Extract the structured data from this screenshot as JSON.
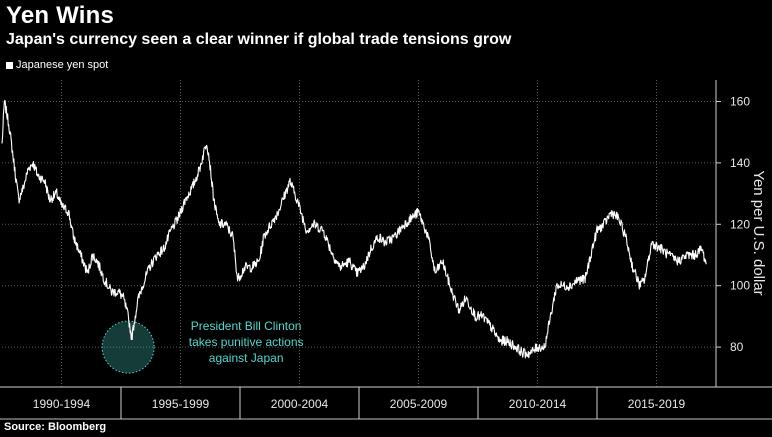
{
  "title": "Yen Wins",
  "subtitle": "Japan's currency seen a clear winner if global trade tensions grow",
  "legend": {
    "label": "Japanese yen spot"
  },
  "source": "Source: Bloomberg",
  "colors": {
    "background": "#000000",
    "line": "#ffffff",
    "grid": "#5a5a5a",
    "annotation": "#4fd8d0"
  },
  "chart_data": {
    "type": "line",
    "title": "Yen Wins",
    "subtitle": "Japan's currency seen a clear winner if global trade tensions grow",
    "series": [
      {
        "name": "Japanese yen spot",
        "x": [
          1990.0,
          1990.1,
          1990.3,
          1990.5,
          1990.7,
          1990.9,
          1991.1,
          1991.3,
          1991.5,
          1991.8,
          1992.0,
          1992.3,
          1992.5,
          1992.8,
          1993.0,
          1993.3,
          1993.6,
          1993.8,
          1994.0,
          1994.3,
          1994.6,
          1994.9,
          1995.1,
          1995.3,
          1995.45,
          1995.7,
          1995.9,
          1996.2,
          1996.5,
          1996.8,
          1997.1,
          1997.4,
          1997.7,
          1998.0,
          1998.3,
          1998.6,
          1998.7,
          1998.9,
          1999.1,
          1999.4,
          1999.7,
          1999.9,
          2000.2,
          2000.5,
          2000.8,
          2001.0,
          2001.3,
          2001.6,
          2001.9,
          2002.1,
          2002.4,
          2002.8,
          2003.1,
          2003.5,
          2003.9,
          2004.2,
          2004.6,
          2004.9,
          2005.2,
          2005.5,
          2005.8,
          2006.1,
          2006.5,
          2006.9,
          2007.2,
          2007.5,
          2007.9,
          2008.2,
          2008.5,
          2008.9,
          2009.2,
          2009.5,
          2009.9,
          2010.2,
          2010.6,
          2010.9,
          2011.2,
          2011.6,
          2011.9,
          2012.2,
          2012.5,
          2012.8,
          2013.1,
          2013.3,
          2013.6,
          2013.9,
          2014.2,
          2014.5,
          2014.8,
          2015.0,
          2015.3,
          2015.6,
          2015.9,
          2016.2,
          2016.5,
          2016.8,
          2017.0,
          2017.3,
          2017.7,
          2018.0,
          2018.4,
          2018.8,
          2019.1,
          2019.4,
          2019.6
        ],
        "values": [
          146,
          160,
          152,
          140,
          128,
          132,
          138,
          140,
          136,
          134,
          128,
          130,
          126,
          124,
          116,
          110,
          104,
          110,
          108,
          102,
          98,
          98,
          96,
          90,
          83,
          95,
          100,
          106,
          110,
          112,
          118,
          122,
          128,
          132,
          138,
          147,
          142,
          128,
          120,
          120,
          116,
          102,
          106,
          106,
          108,
          116,
          120,
          124,
          130,
          134,
          128,
          118,
          120,
          118,
          110,
          106,
          108,
          104,
          106,
          112,
          116,
          114,
          116,
          120,
          122,
          124,
          116,
          104,
          108,
          98,
          92,
          96,
          90,
          90,
          86,
          82,
          82,
          80,
          78,
          78,
          80,
          80,
          92,
          100,
          100,
          100,
          102,
          102,
          112,
          118,
          120,
          124,
          122,
          116,
          106,
          100,
          102,
          114,
          112,
          110,
          108,
          110,
          110,
          112,
          107
        ]
      }
    ],
    "xlabel": "",
    "ylabel": "Yen per U.S. dollar",
    "xlim": [
      1990,
      2020
    ],
    "ylim": [
      67,
      167
    ],
    "yticks": [
      80,
      100,
      120,
      140,
      160
    ],
    "xticks": [
      {
        "label": "1990-1994",
        "from": 1990,
        "to": 1995
      },
      {
        "label": "1995-1999",
        "from": 1995,
        "to": 2000
      },
      {
        "label": "2000-2004",
        "from": 2000,
        "to": 2005
      },
      {
        "label": "2005-2009",
        "from": 2005,
        "to": 2010
      },
      {
        "label": "2010-2014",
        "from": 2010,
        "to": 2015
      },
      {
        "label": "2015-2019",
        "from": 2015,
        "to": 2020
      }
    ],
    "annotations": [
      {
        "lines": [
          "President Bill Clinton",
          "takes punitive actions",
          "against Japan"
        ],
        "x": 1995.3,
        "y": 80
      }
    ],
    "grid": true,
    "legend_position": "top-left"
  }
}
